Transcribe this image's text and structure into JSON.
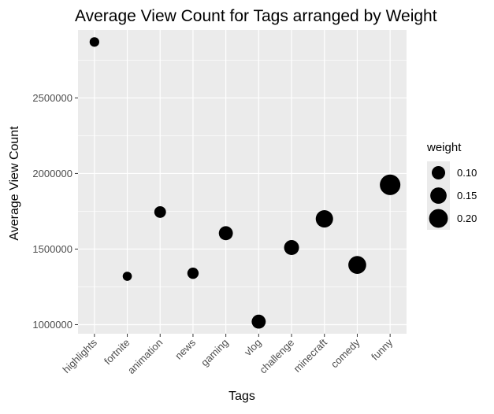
{
  "chart_data": {
    "type": "scatter",
    "title": "Average View Count for Tags arranged by Weight",
    "xlabel": "Tags",
    "ylabel": "Average View Count",
    "categories": [
      "highlights",
      "fortnite",
      "animation",
      "news",
      "gaming",
      "vlog",
      "challenge",
      "minecraft",
      "comedy",
      "funny"
    ],
    "values": [
      2870000,
      1320000,
      1745000,
      1340000,
      1605000,
      1020000,
      1510000,
      1700000,
      1395000,
      1925000
    ],
    "weights": [
      0.05,
      0.045,
      0.075,
      0.07,
      0.11,
      0.11,
      0.125,
      0.17,
      0.18,
      0.24
    ],
    "ylim": [
      940000,
      2950000
    ],
    "yticks": [
      1000000,
      1500000,
      2000000,
      2500000
    ],
    "ytick_labels": [
      "1000000",
      "1500000",
      "2000000",
      "2500000"
    ],
    "grid": true,
    "background": "#ebebeb",
    "gridline_color": "#ffffff",
    "point_color": "#000000",
    "legend": {
      "title": "weight",
      "position": "right",
      "entries": [
        {
          "label": "0.10",
          "value": 0.1
        },
        {
          "label": "0.15",
          "value": 0.15
        },
        {
          "label": "0.20",
          "value": 0.2
        }
      ]
    }
  }
}
